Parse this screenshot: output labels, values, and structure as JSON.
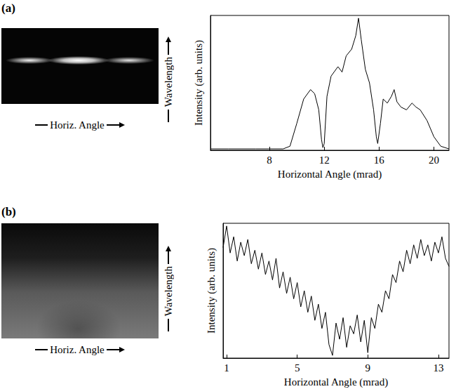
{
  "chart_data": [
    {
      "type": "line",
      "title": "(a)",
      "annotations": [
        "Horiz. Angle",
        "Wavelength"
      ],
      "x_label": "Horizontal Angle (mrad)",
      "y_label": "Intensity (arb. units)",
      "xlim": [
        3.7,
        21.1
      ],
      "xticks": [
        8,
        12,
        16,
        20
      ],
      "ylim": [
        0,
        100
      ],
      "tick_labels": "x",
      "grid": false,
      "color": "#000000",
      "x": [
        3.7,
        5,
        7,
        9,
        9.5,
        10,
        10.5,
        11,
        11.3,
        11.6,
        11.8,
        11.9,
        12.0,
        12.2,
        12.5,
        13,
        13.3,
        13.6,
        14.0,
        14.3,
        14.5,
        14.7,
        15,
        15.3,
        15.6,
        15.8,
        15.9,
        16.1,
        16.3,
        16.6,
        16.9,
        17.1,
        17.3,
        17.6,
        18,
        18.4,
        18.7,
        19,
        19.5,
        20,
        20.5,
        21.1
      ],
      "values": [
        1,
        1,
        1,
        1,
        3,
        20,
        38,
        45,
        42,
        30,
        8,
        2,
        5,
        40,
        55,
        62,
        58,
        70,
        75,
        85,
        98,
        82,
        60,
        50,
        30,
        10,
        5,
        20,
        38,
        35,
        40,
        45,
        36,
        32,
        30,
        35,
        32,
        30,
        22,
        10,
        3,
        1
      ]
    },
    {
      "type": "line",
      "title": "(b)",
      "annotations": [
        "Horiz. Angle",
        "Wavelength"
      ],
      "x_label": "Horizontal Angle (mrad)",
      "y_label": "Intensity (arb. units)",
      "xlim": [
        0.8,
        13.6
      ],
      "xticks": [
        1,
        5,
        9,
        13
      ],
      "ylim": [
        0,
        100
      ],
      "tick_labels": "x",
      "grid": false,
      "color": "#000000",
      "x": [
        0.8,
        1.0,
        1.2,
        1.4,
        1.6,
        1.8,
        2.0,
        2.2,
        2.4,
        2.6,
        2.8,
        3.0,
        3.2,
        3.4,
        3.6,
        3.8,
        4.0,
        4.2,
        4.4,
        4.6,
        4.8,
        5.0,
        5.2,
        5.4,
        5.6,
        5.8,
        6.0,
        6.2,
        6.4,
        6.6,
        6.8,
        7.0,
        7.2,
        7.4,
        7.6,
        7.8,
        8.0,
        8.2,
        8.4,
        8.6,
        8.8,
        9.0,
        9.2,
        9.4,
        9.6,
        9.8,
        10.0,
        10.2,
        10.4,
        10.6,
        10.8,
        11.0,
        11.2,
        11.4,
        11.6,
        11.8,
        12.0,
        12.2,
        12.4,
        12.6,
        12.8,
        13.0,
        13.2,
        13.4,
        13.6
      ],
      "values": [
        82,
        98,
        78,
        90,
        72,
        86,
        76,
        88,
        70,
        80,
        66,
        78,
        62,
        72,
        58,
        74,
        52,
        64,
        48,
        60,
        44,
        56,
        38,
        50,
        34,
        46,
        28,
        40,
        22,
        34,
        10,
        2,
        26,
        14,
        30,
        8,
        24,
        18,
        32,
        12,
        28,
        4,
        30,
        22,
        40,
        34,
        50,
        44,
        62,
        56,
        72,
        64,
        80,
        70,
        84,
        74,
        88,
        76,
        84,
        72,
        86,
        78,
        90,
        74,
        68
      ]
    }
  ]
}
